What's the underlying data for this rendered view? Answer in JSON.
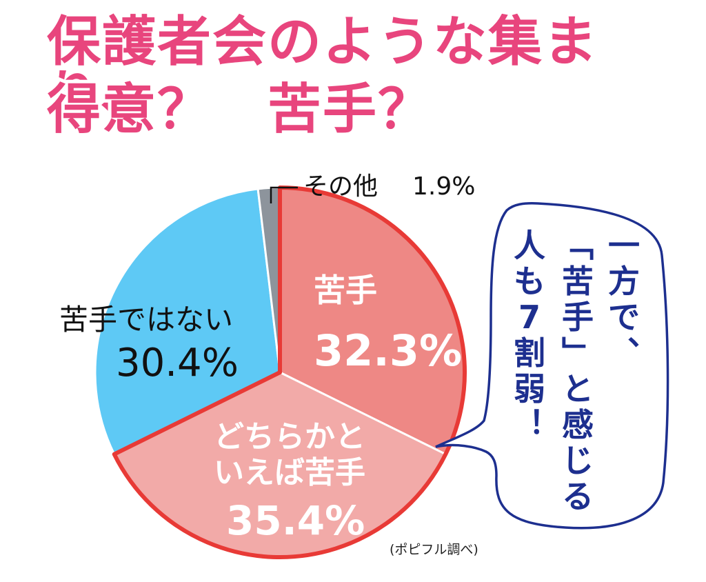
{
  "title": {
    "line1": "保護者会のような集まり、",
    "line2": "得意？　苦手？"
  },
  "chart_data": {
    "type": "pie",
    "slices": [
      {
        "name": "苦手",
        "value": 32.3,
        "label": "32.3%",
        "color": "#ee8885",
        "highlight": true
      },
      {
        "name": "どちらかといえば苦手",
        "name_lines": [
          "どちらかと",
          "いえば苦手"
        ],
        "value": 35.4,
        "label": "35.4%",
        "color": "#f2aaa8",
        "highlight": true
      },
      {
        "name": "苦手ではない",
        "value": 30.4,
        "label": "30.4%",
        "color": "#5ec9f5",
        "highlight": false
      },
      {
        "name": "その他",
        "value": 1.9,
        "label": "1.9%",
        "color": "#8d949c",
        "highlight": false
      }
    ],
    "highlight_color": "#e83a36"
  },
  "callout": {
    "lines": [
      "一方で、",
      "「苦手」と感じる",
      "人も7割弱！"
    ],
    "text_color": "#1d2f8f",
    "border_color": "#1d2f8f"
  },
  "source": "(ポピフル調べ)"
}
